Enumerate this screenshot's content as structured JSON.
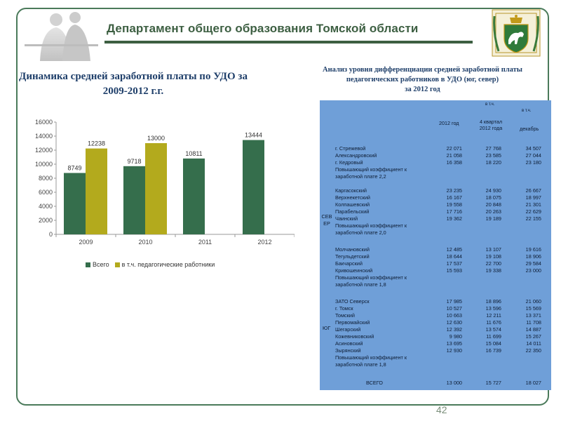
{
  "header": {
    "title": "Департамент общего образования Томской области",
    "page_number": "42"
  },
  "chart_data": {
    "type": "bar",
    "title": "Динамика средней заработной платы по УДО за 2009-2012 г.г.",
    "categories": [
      "2009",
      "2010",
      "2011",
      "2012"
    ],
    "series": [
      {
        "name": "Всего",
        "color": "#356e4c",
        "values": [
          8749,
          9718,
          10811,
          13444
        ]
      },
      {
        "name": "в т.ч. педагогические работники",
        "color": "#b3aa1d",
        "values": [
          12238,
          13000,
          null,
          null
        ]
      }
    ],
    "yticks": [
      "0",
      "2000",
      "4000",
      "6000",
      "8000",
      "10000",
      "12000",
      "14000",
      "16000"
    ],
    "ylim": [
      0,
      16000
    ],
    "data_labels": [
      "8749",
      "12238",
      "9718",
      "13000",
      "10811",
      "13444"
    ],
    "legend_position": "bottom",
    "grid": false
  },
  "table": {
    "title_lines": [
      "Анализ уровня дифференциации средней заработной платы",
      "педагогических работников в УДО (юг, север)",
      "за 2012 год"
    ],
    "headers": {
      "col1": "2012 год",
      "col2_pre": "в т.ч.",
      "col2": "4 квартал 2012 года",
      "col3_pre": "в т.ч.",
      "col3": "декабрь"
    },
    "groups": [
      {
        "label": "СЕВЕР",
        "label_line1": "СЕВ",
        "label_line2": "ЕР"
      },
      {
        "label": "ЮГ"
      }
    ],
    "rows": [
      {
        "name": "г. Стрежевой",
        "v1": "22 071",
        "v2": "27 768",
        "v3": "34 507"
      },
      {
        "name": "Александровский",
        "v1": "21 058",
        "v2": "23 585",
        "v3": "27 044"
      },
      {
        "name": "г. Кедровый",
        "v1": "16 358",
        "v2": "18 220",
        "v3": "23 180"
      },
      {
        "name": "Повышающий коэффициент к заработной плате 2,2",
        "line1": "Повышающий коэффициент к",
        "line2": "заработной плате 2,2"
      },
      {
        "name": "Каргасокский",
        "v1": "23 235",
        "v2": "24 930",
        "v3": "26 667"
      },
      {
        "name": "Верхнекетский",
        "v1": "16 167",
        "v2": "18 075",
        "v3": "18 997"
      },
      {
        "name": "Колпашевский",
        "v1": "19 558",
        "v2": "20 848",
        "v3": "21 301"
      },
      {
        "name": "Парабельский",
        "v1": "17 716",
        "v2": "20 263",
        "v3": "22 629"
      },
      {
        "name": "Чаинский",
        "v1": "19 362",
        "v2": "19 189",
        "v3": "22 155"
      },
      {
        "name": "Повышающий коэффициент к заработной плате 2,0",
        "line1": "Повышающий коэффициент к",
        "line2": "заработной плате 2,0"
      },
      {
        "name": "Молчановский",
        "v1": "12 485",
        "v2": "13 107",
        "v3": "19 616"
      },
      {
        "name": "Тегульдетский",
        "v1": "18 644",
        "v2": "19 108",
        "v3": "18 906"
      },
      {
        "name": "Бакчарский",
        "v1": "17 537",
        "v2": "22 700",
        "v3": "29 584"
      },
      {
        "name": "Кривошеинский",
        "v1": "15 593",
        "v2": "19 338",
        "v3": "23 000"
      },
      {
        "name": "Повышающий коэффициент к заработной плате 1,8",
        "line1": "Повышающий коэффициент к",
        "line2": "заработной плате 1,8"
      },
      {
        "name": "ЗАТО Северск",
        "v1": "17 985",
        "v2": "18 896",
        "v3": "21 060"
      },
      {
        "name": "г. Томск",
        "v1": "10 527",
        "v2": "13 596",
        "v3": "15 569"
      },
      {
        "name": "Томский",
        "v1": "10 663",
        "v2": "12 211",
        "v3": "13 371"
      },
      {
        "name": "Первомайский",
        "v1": "12 630",
        "v2": "11 676",
        "v3": "11 708"
      },
      {
        "name": "Шегарский",
        "v1": "12 392",
        "v2": "13 574",
        "v3": "14 887"
      },
      {
        "name": "Кожевниковский",
        "v1": "9 980",
        "v2": "11 699",
        "v3": "15 267"
      },
      {
        "name": "Асиновский",
        "v1": "13 695",
        "v2": "15 084",
        "v3": "14 011"
      },
      {
        "name": "Зырянский",
        "v1": "12 930",
        "v2": "16 739",
        "v3": "22 350"
      },
      {
        "name": "Повышающий коэффициент к заработной плате 1,8",
        "line1": "Повышающий коэффициент к",
        "line2": "заработной плате 1,8"
      },
      {
        "name": "ВСЕГО",
        "v1": "13 000",
        "v2": "15 727",
        "v3": "18 027"
      }
    ]
  }
}
